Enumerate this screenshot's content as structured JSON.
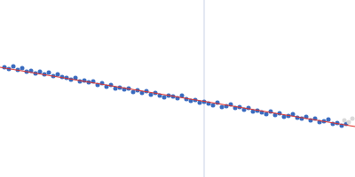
{
  "chart_data": {
    "type": "scatter",
    "tick_labels": false,
    "grid": false,
    "xlim": [
      0,
      400
    ],
    "ylim": [
      0,
      200
    ],
    "series": [
      {
        "type": "line",
        "color": "#d0d8ea",
        "x": [
          230,
          230
        ],
        "values": [
          0,
          200
        ]
      },
      {
        "type": "scatter",
        "color": "#3a6bbf",
        "marker": "circle",
        "x": [
          5,
          10,
          15,
          20,
          25,
          30,
          35,
          40,
          45,
          50,
          55,
          60,
          65,
          70,
          75,
          80,
          85,
          90,
          95,
          100,
          105,
          110,
          115,
          120,
          125,
          130,
          135,
          140,
          145,
          150,
          155,
          160,
          165,
          170,
          175,
          180,
          185,
          190,
          195,
          200,
          205,
          210,
          215,
          220,
          225,
          230,
          235,
          240,
          245,
          250,
          255,
          260,
          265,
          270,
          275,
          280,
          285,
          290,
          295,
          300,
          305,
          310,
          315,
          320,
          325,
          330,
          335,
          340,
          345,
          350,
          355,
          360,
          365,
          370,
          375,
          380,
          385,
          390
        ],
        "values": [
          124,
          122,
          125,
          121,
          123,
          119,
          120,
          117,
          119,
          116,
          118,
          114,
          116,
          113,
          112,
          110,
          112,
          108,
          109,
          107,
          108,
          104,
          106,
          102,
          104,
          100,
          101,
          99,
          100,
          96,
          98,
          95,
          97,
          93,
          95,
          92,
          90,
          92,
          91,
          89,
          92,
          88,
          86,
          87,
          84,
          85,
          83,
          81,
          84,
          79,
          80,
          82,
          78,
          79,
          76,
          78,
          74,
          75,
          73,
          71,
          74,
          70,
          72,
          68,
          69,
          71,
          67,
          66,
          68,
          64,
          66,
          62,
          63,
          65,
          60,
          61,
          58,
          60
        ]
      },
      {
        "type": "scatter",
        "color": "#d9d9d9",
        "marker": "circle",
        "x": [
          388,
          393,
          397
        ],
        "values": [
          64,
          62,
          66
        ]
      },
      {
        "type": "line",
        "color": "#e0302a",
        "x": [
          0,
          400
        ],
        "values": [
          124,
          57
        ]
      }
    ]
  }
}
